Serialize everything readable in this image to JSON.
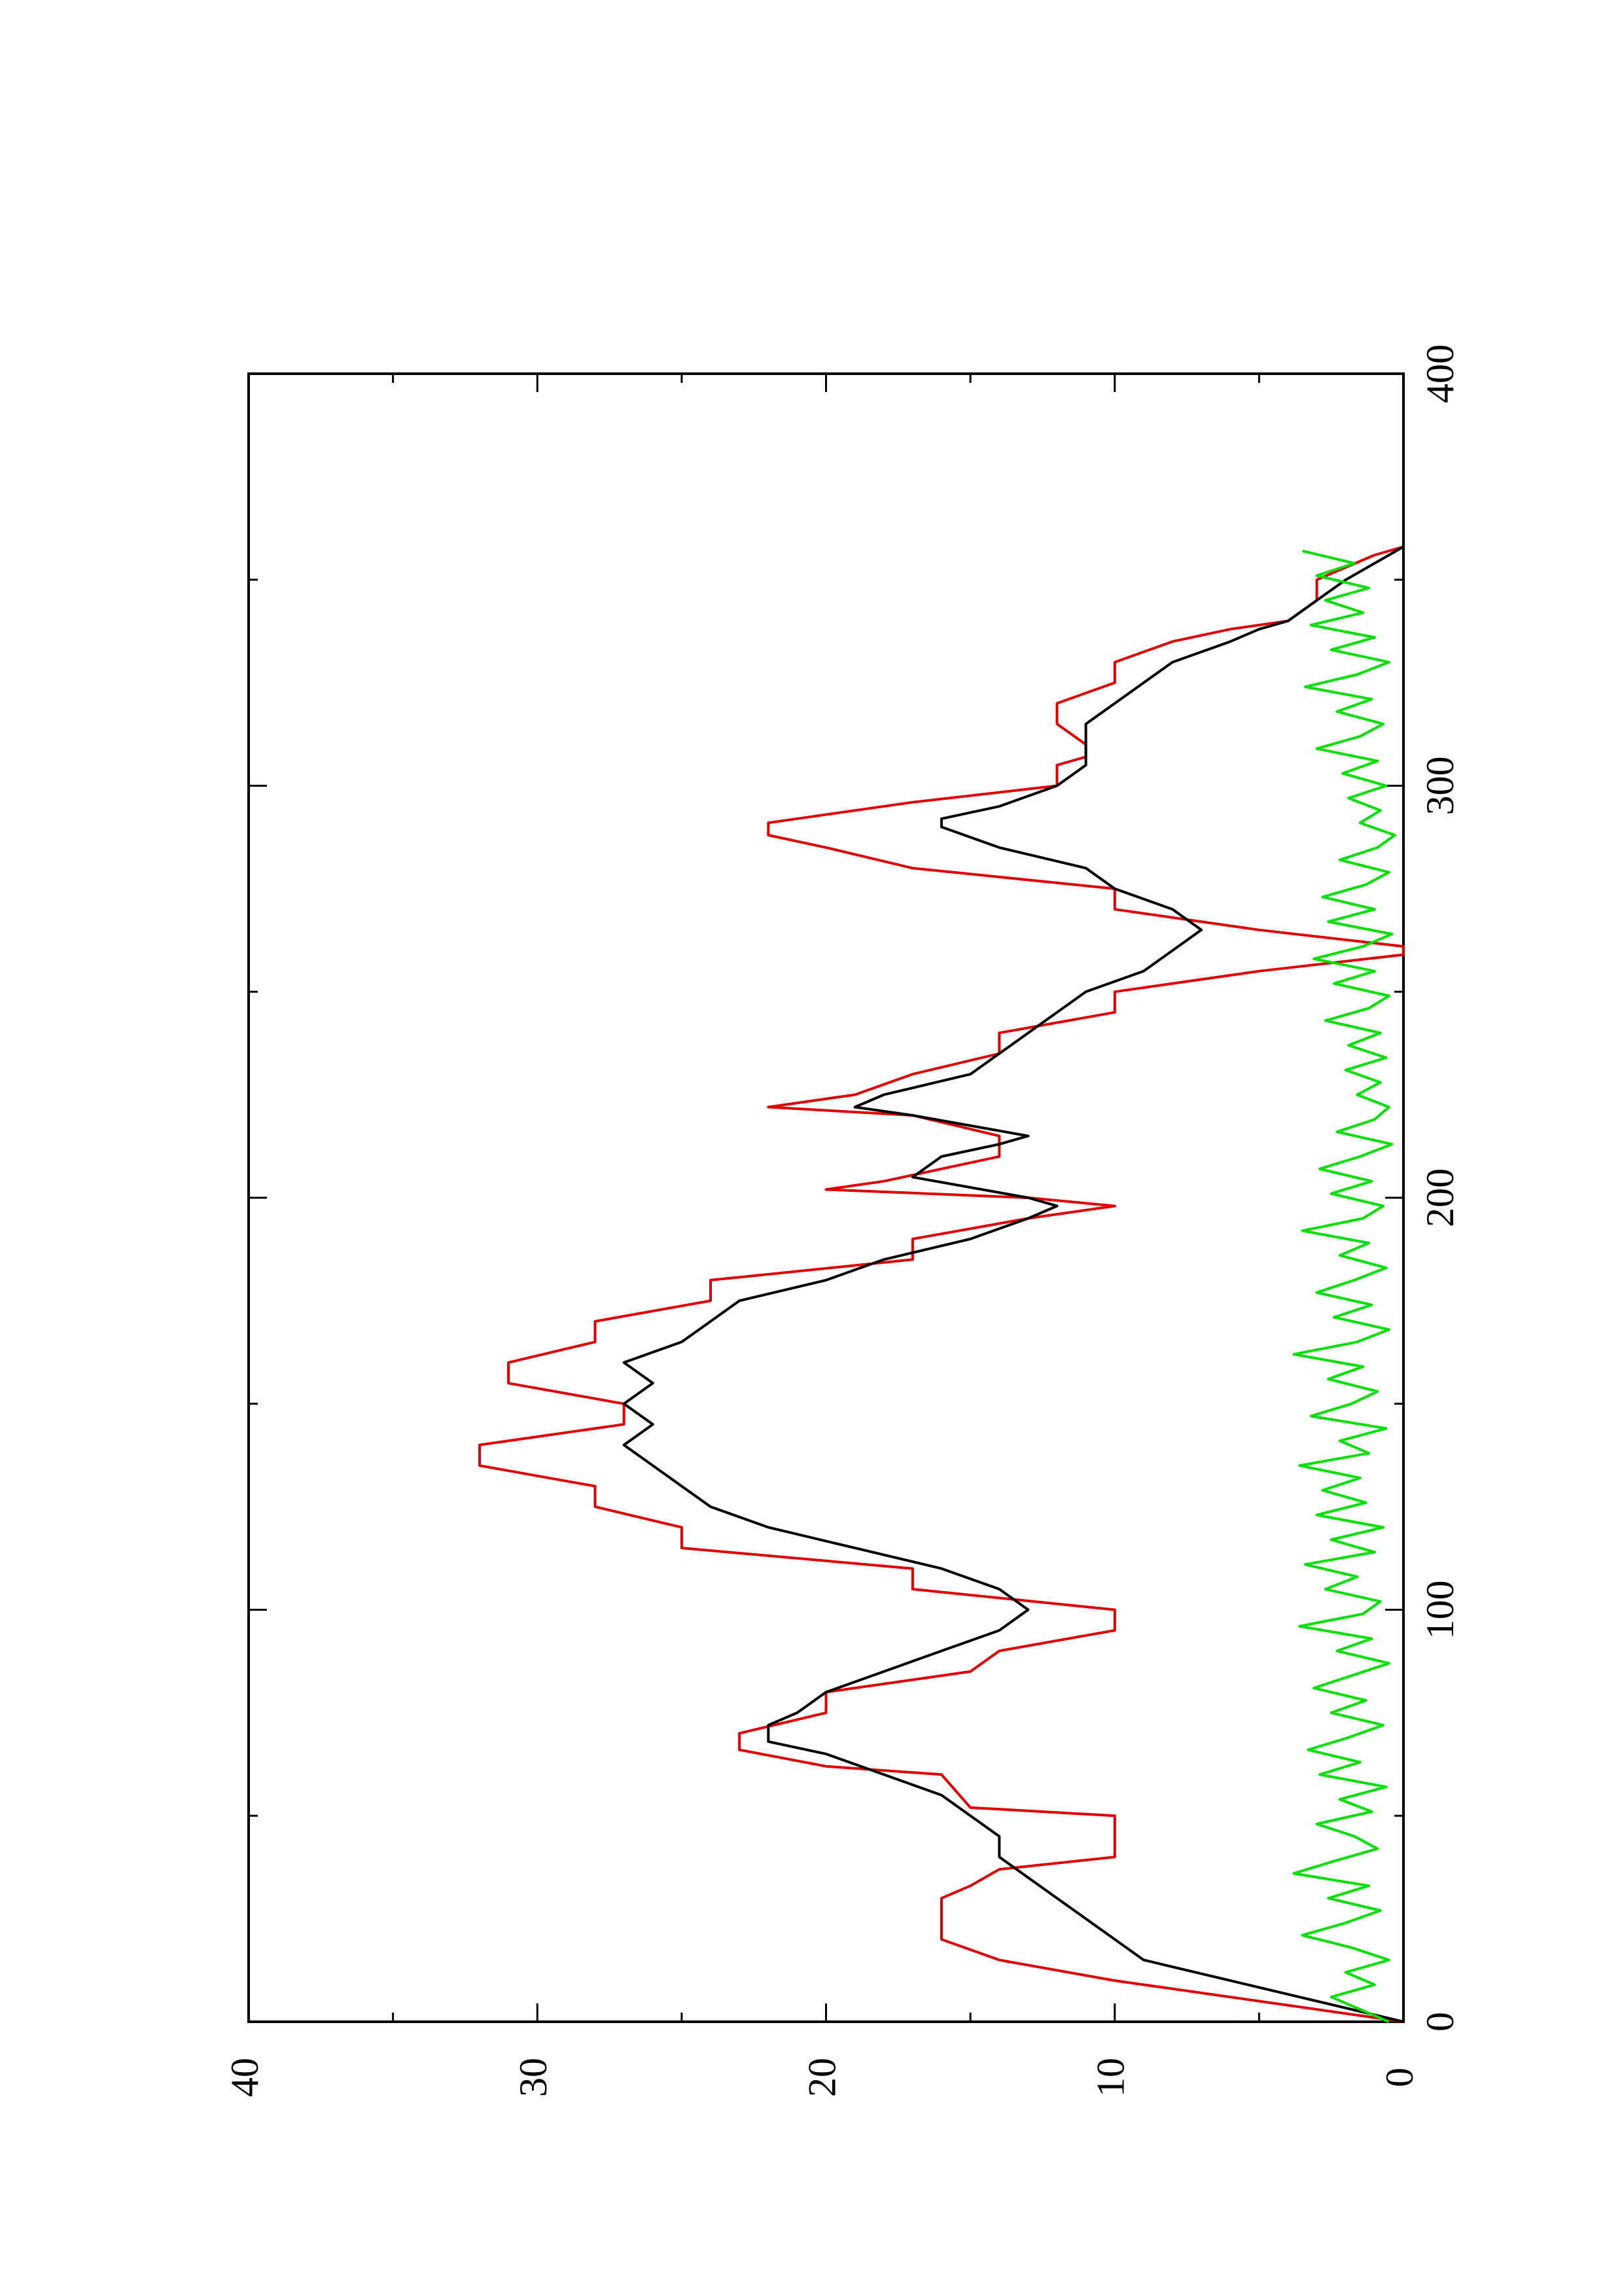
{
  "chart_data": {
    "type": "line",
    "title": "",
    "xlabel": "",
    "ylabel": "",
    "xlim": [
      0,
      400
    ],
    "ylim": [
      0,
      40
    ],
    "x_ticks": [
      0,
      100,
      200,
      300,
      400
    ],
    "x_minor_ticks": [
      50,
      150,
      250,
      350
    ],
    "y_ticks": [
      0,
      10,
      20,
      30,
      40
    ],
    "y_minor_ticks": [
      5,
      15,
      25,
      35
    ],
    "grid": false,
    "legend": "none",
    "orientation": "rotated 90 degrees counter-clockwise",
    "series": [
      {
        "color": "#e00000",
        "style": "step-like piecewise linear",
        "points": [
          [
            0,
            0
          ],
          [
            5,
            5
          ],
          [
            10,
            10
          ],
          [
            15,
            14
          ],
          [
            20,
            16
          ],
          [
            30,
            16
          ],
          [
            33,
            15
          ],
          [
            37,
            14
          ],
          [
            40,
            10
          ],
          [
            50,
            10
          ],
          [
            52,
            15
          ],
          [
            60,
            16
          ],
          [
            62,
            20
          ],
          [
            66,
            23
          ],
          [
            70,
            23
          ],
          [
            75,
            20
          ],
          [
            80,
            20
          ],
          [
            85,
            15
          ],
          [
            90,
            14
          ],
          [
            95,
            10
          ],
          [
            100,
            10
          ],
          [
            105,
            17
          ],
          [
            110,
            17
          ],
          [
            115,
            25
          ],
          [
            120,
            25
          ],
          [
            125,
            28
          ],
          [
            130,
            28
          ],
          [
            135,
            32
          ],
          [
            140,
            32
          ],
          [
            145,
            27
          ],
          [
            150,
            27
          ],
          [
            155,
            31
          ],
          [
            160,
            31
          ],
          [
            165,
            28
          ],
          [
            170,
            28
          ],
          [
            175,
            24
          ],
          [
            180,
            24
          ],
          [
            185,
            17
          ],
          [
            190,
            17
          ],
          [
            195,
            13
          ],
          [
            198,
            10
          ],
          [
            200,
            13
          ],
          [
            202,
            20
          ],
          [
            204,
            18
          ],
          [
            210,
            14
          ],
          [
            215,
            14
          ],
          [
            220,
            17
          ],
          [
            222,
            22
          ],
          [
            225,
            19
          ],
          [
            230,
            17
          ],
          [
            235,
            14
          ],
          [
            240,
            14
          ],
          [
            245,
            10
          ],
          [
            250,
            10
          ],
          [
            255,
            5
          ],
          [
            259,
            0
          ],
          [
            261,
            0
          ],
          [
            265,
            5
          ],
          [
            270,
            10
          ],
          [
            275,
            10
          ],
          [
            280,
            17
          ],
          [
            285,
            20
          ],
          [
            288,
            22
          ],
          [
            291,
            22
          ],
          [
            296,
            17
          ],
          [
            300,
            12
          ],
          [
            305,
            12
          ],
          [
            307,
            11
          ],
          [
            310,
            11
          ],
          [
            315,
            12
          ],
          [
            320,
            12
          ],
          [
            325,
            10
          ],
          [
            330,
            10
          ],
          [
            335,
            8
          ],
          [
            338,
            6
          ],
          [
            340,
            4
          ],
          [
            345,
            3
          ],
          [
            350,
            3
          ],
          [
            353,
            2
          ],
          [
            356,
            1
          ],
          [
            358,
            0
          ]
        ]
      },
      {
        "color": "#000000",
        "style": "smoothed line",
        "points": [
          [
            0,
            0
          ],
          [
            5,
            3
          ],
          [
            10,
            6
          ],
          [
            15,
            9
          ],
          [
            20,
            10
          ],
          [
            25,
            11
          ],
          [
            30,
            12
          ],
          [
            35,
            13
          ],
          [
            40,
            14
          ],
          [
            45,
            14
          ],
          [
            50,
            15
          ],
          [
            55,
            16
          ],
          [
            60,
            18
          ],
          [
            65,
            20
          ],
          [
            68,
            22
          ],
          [
            72,
            22
          ],
          [
            75,
            21
          ],
          [
            80,
            20
          ],
          [
            85,
            18
          ],
          [
            90,
            16
          ],
          [
            95,
            14
          ],
          [
            100,
            13
          ],
          [
            105,
            14
          ],
          [
            110,
            16
          ],
          [
            115,
            19
          ],
          [
            120,
            22
          ],
          [
            125,
            24
          ],
          [
            130,
            25
          ],
          [
            135,
            26
          ],
          [
            140,
            27
          ],
          [
            145,
            26
          ],
          [
            150,
            27
          ],
          [
            155,
            26
          ],
          [
            160,
            27
          ],
          [
            165,
            25
          ],
          [
            170,
            24
          ],
          [
            175,
            23
          ],
          [
            180,
            20
          ],
          [
            185,
            18
          ],
          [
            190,
            15
          ],
          [
            195,
            13
          ],
          [
            198,
            12
          ],
          [
            200,
            13
          ],
          [
            205,
            17
          ],
          [
            210,
            16
          ],
          [
            213,
            14
          ],
          [
            215,
            13
          ],
          [
            220,
            17
          ],
          [
            222,
            19
          ],
          [
            225,
            18
          ],
          [
            230,
            15
          ],
          [
            235,
            14
          ],
          [
            240,
            13
          ],
          [
            245,
            12
          ],
          [
            250,
            11
          ],
          [
            255,
            9
          ],
          [
            260,
            8
          ],
          [
            265,
            7
          ],
          [
            270,
            8
          ],
          [
            275,
            10
          ],
          [
            280,
            11
          ],
          [
            285,
            14
          ],
          [
            290,
            16
          ],
          [
            292,
            16
          ],
          [
            295,
            14
          ],
          [
            300,
            12
          ],
          [
            305,
            11
          ],
          [
            310,
            11
          ],
          [
            315,
            11
          ],
          [
            320,
            10
          ],
          [
            325,
            9
          ],
          [
            330,
            8
          ],
          [
            335,
            6
          ],
          [
            338,
            5
          ],
          [
            340,
            4
          ],
          [
            345,
            3
          ],
          [
            350,
            2
          ],
          [
            354,
            1
          ],
          [
            358,
            0
          ]
        ]
      },
      {
        "color": "#00e000",
        "style": "noisy line near zero",
        "points": [
          [
            0,
            0.5
          ],
          [
            3,
            1.5
          ],
          [
            6,
            2.5
          ],
          [
            9,
            1.0
          ],
          [
            12,
            2.0
          ],
          [
            15,
            0.5
          ],
          [
            18,
            1.8
          ],
          [
            21,
            3.5
          ],
          [
            24,
            2.0
          ],
          [
            27,
            0.8
          ],
          [
            30,
            2.6
          ],
          [
            33,
            1.2
          ],
          [
            36,
            3.8
          ],
          [
            39,
            2.4
          ],
          [
            42,
            0.9
          ],
          [
            45,
            1.7
          ],
          [
            48,
            3.0
          ],
          [
            51,
            1.1
          ],
          [
            54,
            2.2
          ],
          [
            57,
            0.6
          ],
          [
            60,
            2.9
          ],
          [
            63,
            1.5
          ],
          [
            66,
            3.3
          ],
          [
            69,
            1.9
          ],
          [
            72,
            0.7
          ],
          [
            75,
            2.5
          ],
          [
            78,
            1.3
          ],
          [
            81,
            3.1
          ],
          [
            84,
            1.8
          ],
          [
            87,
            0.5
          ],
          [
            90,
            2.3
          ],
          [
            93,
            1.1
          ],
          [
            96,
            3.6
          ],
          [
            99,
            1.4
          ],
          [
            102,
            0.8
          ],
          [
            105,
            2.7
          ],
          [
            108,
            1.6
          ],
          [
            111,
            3.4
          ],
          [
            114,
            1.0
          ],
          [
            117,
            2.5
          ],
          [
            120,
            0.7
          ],
          [
            123,
            3.0
          ],
          [
            126,
            1.3
          ],
          [
            129,
            2.8
          ],
          [
            132,
            1.5
          ],
          [
            135,
            3.6
          ],
          [
            138,
            1.2
          ],
          [
            141,
            2.2
          ],
          [
            144,
            0.6
          ],
          [
            147,
            3.2
          ],
          [
            150,
            1.8
          ],
          [
            153,
            0.9
          ],
          [
            156,
            2.6
          ],
          [
            159,
            1.4
          ],
          [
            162,
            3.8
          ],
          [
            165,
            1.6
          ],
          [
            168,
            0.5
          ],
          [
            171,
            2.4
          ],
          [
            174,
            1.1
          ],
          [
            177,
            3.0
          ],
          [
            180,
            1.7
          ],
          [
            183,
            0.6
          ],
          [
            186,
            2.2
          ],
          [
            189,
            1.2
          ],
          [
            192,
            3.5
          ],
          [
            195,
            1.4
          ],
          [
            198,
            0.7
          ],
          [
            201,
            2.5
          ],
          [
            204,
            1.1
          ],
          [
            207,
            2.9
          ],
          [
            210,
            1.5
          ],
          [
            213,
            0.4
          ],
          [
            216,
            2.3
          ],
          [
            219,
            1.0
          ],
          [
            222,
            0.5
          ],
          [
            225,
            1.6
          ],
          [
            228,
            0.8
          ],
          [
            231,
            2.0
          ],
          [
            234,
            0.6
          ],
          [
            237,
            1.9
          ],
          [
            240,
            0.8
          ],
          [
            243,
            2.7
          ],
          [
            246,
            1.2
          ],
          [
            249,
            0.5
          ],
          [
            252,
            2.4
          ],
          [
            255,
            1.0
          ],
          [
            258,
            3.1
          ],
          [
            261,
            1.4
          ],
          [
            264,
            0.4
          ],
          [
            267,
            2.6
          ],
          [
            270,
            1.0
          ],
          [
            273,
            2.8
          ],
          [
            276,
            1.3
          ],
          [
            279,
            0.5
          ],
          [
            282,
            2.2
          ],
          [
            285,
            0.9
          ],
          [
            288,
            0.3
          ],
          [
            291,
            1.5
          ],
          [
            294,
            0.8
          ],
          [
            297,
            1.9
          ],
          [
            300,
            0.6
          ],
          [
            303,
            2.1
          ],
          [
            306,
            0.9
          ],
          [
            309,
            3.0
          ],
          [
            312,
            1.5
          ],
          [
            315,
            0.7
          ],
          [
            318,
            2.3
          ],
          [
            321,
            1.1
          ],
          [
            324,
            3.4
          ],
          [
            327,
            1.6
          ],
          [
            330,
            0.5
          ],
          [
            333,
            2.5
          ],
          [
            336,
            1.0
          ],
          [
            339,
            3.2
          ],
          [
            342,
            1.4
          ],
          [
            345,
            2.7
          ],
          [
            348,
            1.2
          ],
          [
            351,
            3.0
          ],
          [
            354,
            1.7
          ],
          [
            357,
            3.5
          ]
        ]
      }
    ]
  }
}
